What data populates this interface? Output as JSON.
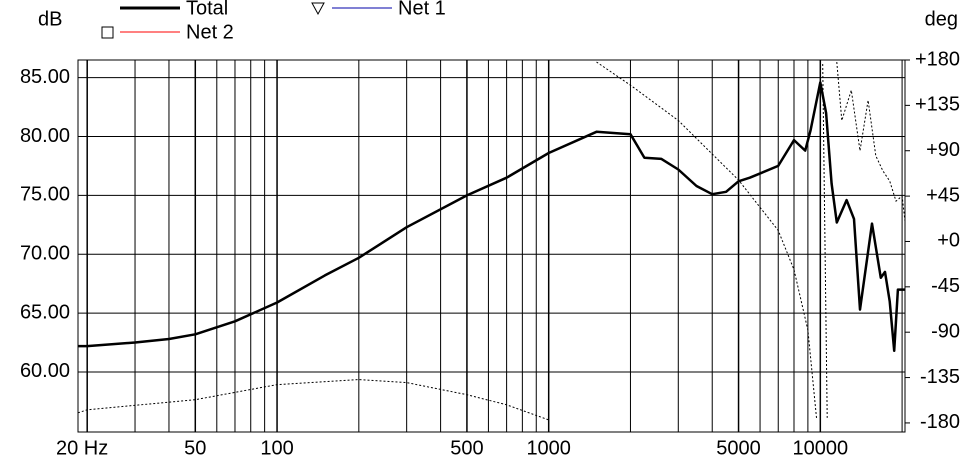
{
  "chart_data": {
    "type": "line",
    "y_label": "dB",
    "y2_label": "deg",
    "xscale": "log",
    "xlim": [
      18.5,
      20500
    ],
    "ylim": [
      54.9,
      86.5
    ],
    "y2lim": [
      -189,
      180
    ],
    "xticks": [
      {
        "value": 20,
        "label": "20 Hz"
      },
      50,
      100,
      500,
      1000,
      5000,
      10000
    ],
    "xminor": [
      30,
      40,
      60,
      70,
      80,
      90,
      200,
      300,
      400,
      600,
      700,
      800,
      900,
      2000,
      3000,
      4000,
      6000,
      7000,
      8000,
      9000,
      20000
    ],
    "yticks": [
      {
        "value": 60,
        "label": "60.00"
      },
      {
        "value": 65,
        "label": "65.00"
      },
      {
        "value": 70,
        "label": "70.00"
      },
      {
        "value": 75,
        "label": "75.00"
      },
      {
        "value": 80,
        "label": "80.00"
      },
      {
        "value": 85,
        "label": "85.00"
      }
    ],
    "y2ticks": [
      -180,
      -135,
      -90,
      -45,
      {
        "value": 0,
        "label": "+0"
      },
      {
        "value": 45,
        "label": "+45"
      },
      {
        "value": 90,
        "label": "+90"
      },
      {
        "value": 135,
        "label": "+135"
      },
      {
        "value": 180,
        "label": "+180"
      }
    ],
    "grid": true,
    "series": [
      {
        "name": "Total",
        "color": "#000000",
        "marker": "none",
        "x": [
          18.5,
          20,
          30,
          40,
          50,
          70,
          100,
          150,
          200,
          300,
          500,
          700,
          1000,
          1500,
          2000,
          2250,
          2600,
          3000,
          3500,
          4000,
          4500,
          5000,
          5500,
          7000,
          8000,
          8800,
          9200,
          10000,
          10500,
          11000,
          11500,
          12500,
          13300,
          14000,
          15500,
          16700,
          17300,
          18000,
          18700,
          19300,
          20000,
          20500
        ],
        "values": [
          62.2,
          62.2,
          62.5,
          62.8,
          63.2,
          64.3,
          65.9,
          68.2,
          69.7,
          72.3,
          75.0,
          76.5,
          78.6,
          80.4,
          80.2,
          78.2,
          78.1,
          77.2,
          75.8,
          75.1,
          75.3,
          76.2,
          76.5,
          77.5,
          79.7,
          78.8,
          80.5,
          84.6,
          82.0,
          76.0,
          72.7,
          74.6,
          73.0,
          65.3,
          72.6,
          68.0,
          68.5,
          66.0,
          61.8,
          67.0,
          67.0,
          67.0
        ]
      },
      {
        "name": "Net 2",
        "color": "#ff0000",
        "marker": "square"
      },
      {
        "name": "Net 1",
        "color": "#0000aa",
        "marker": "triangle"
      }
    ],
    "phase": {
      "color": "#000000",
      "axis": "y2",
      "x": [
        18.5,
        20,
        50,
        100,
        200,
        300,
        500,
        700,
        1000,
        1010,
        1500,
        2000,
        3000,
        5000,
        7000,
        8000,
        9000,
        9700,
        10000,
        10200,
        10600,
        11000,
        11500,
        12000,
        13000,
        14000,
        15000,
        16000,
        17000,
        18000,
        19000,
        20000,
        20500
      ],
      "values": [
        -170,
        -167,
        -157,
        -142,
        -137,
        -140,
        -152,
        -162,
        -177,
        null,
        178,
        155,
        120,
        61,
        11,
        -28,
        -88,
        -177,
        null,
        176,
        -175,
        null,
        178,
        120,
        150,
        90,
        140,
        85,
        70,
        60,
        40,
        45,
        20
      ]
    }
  }
}
